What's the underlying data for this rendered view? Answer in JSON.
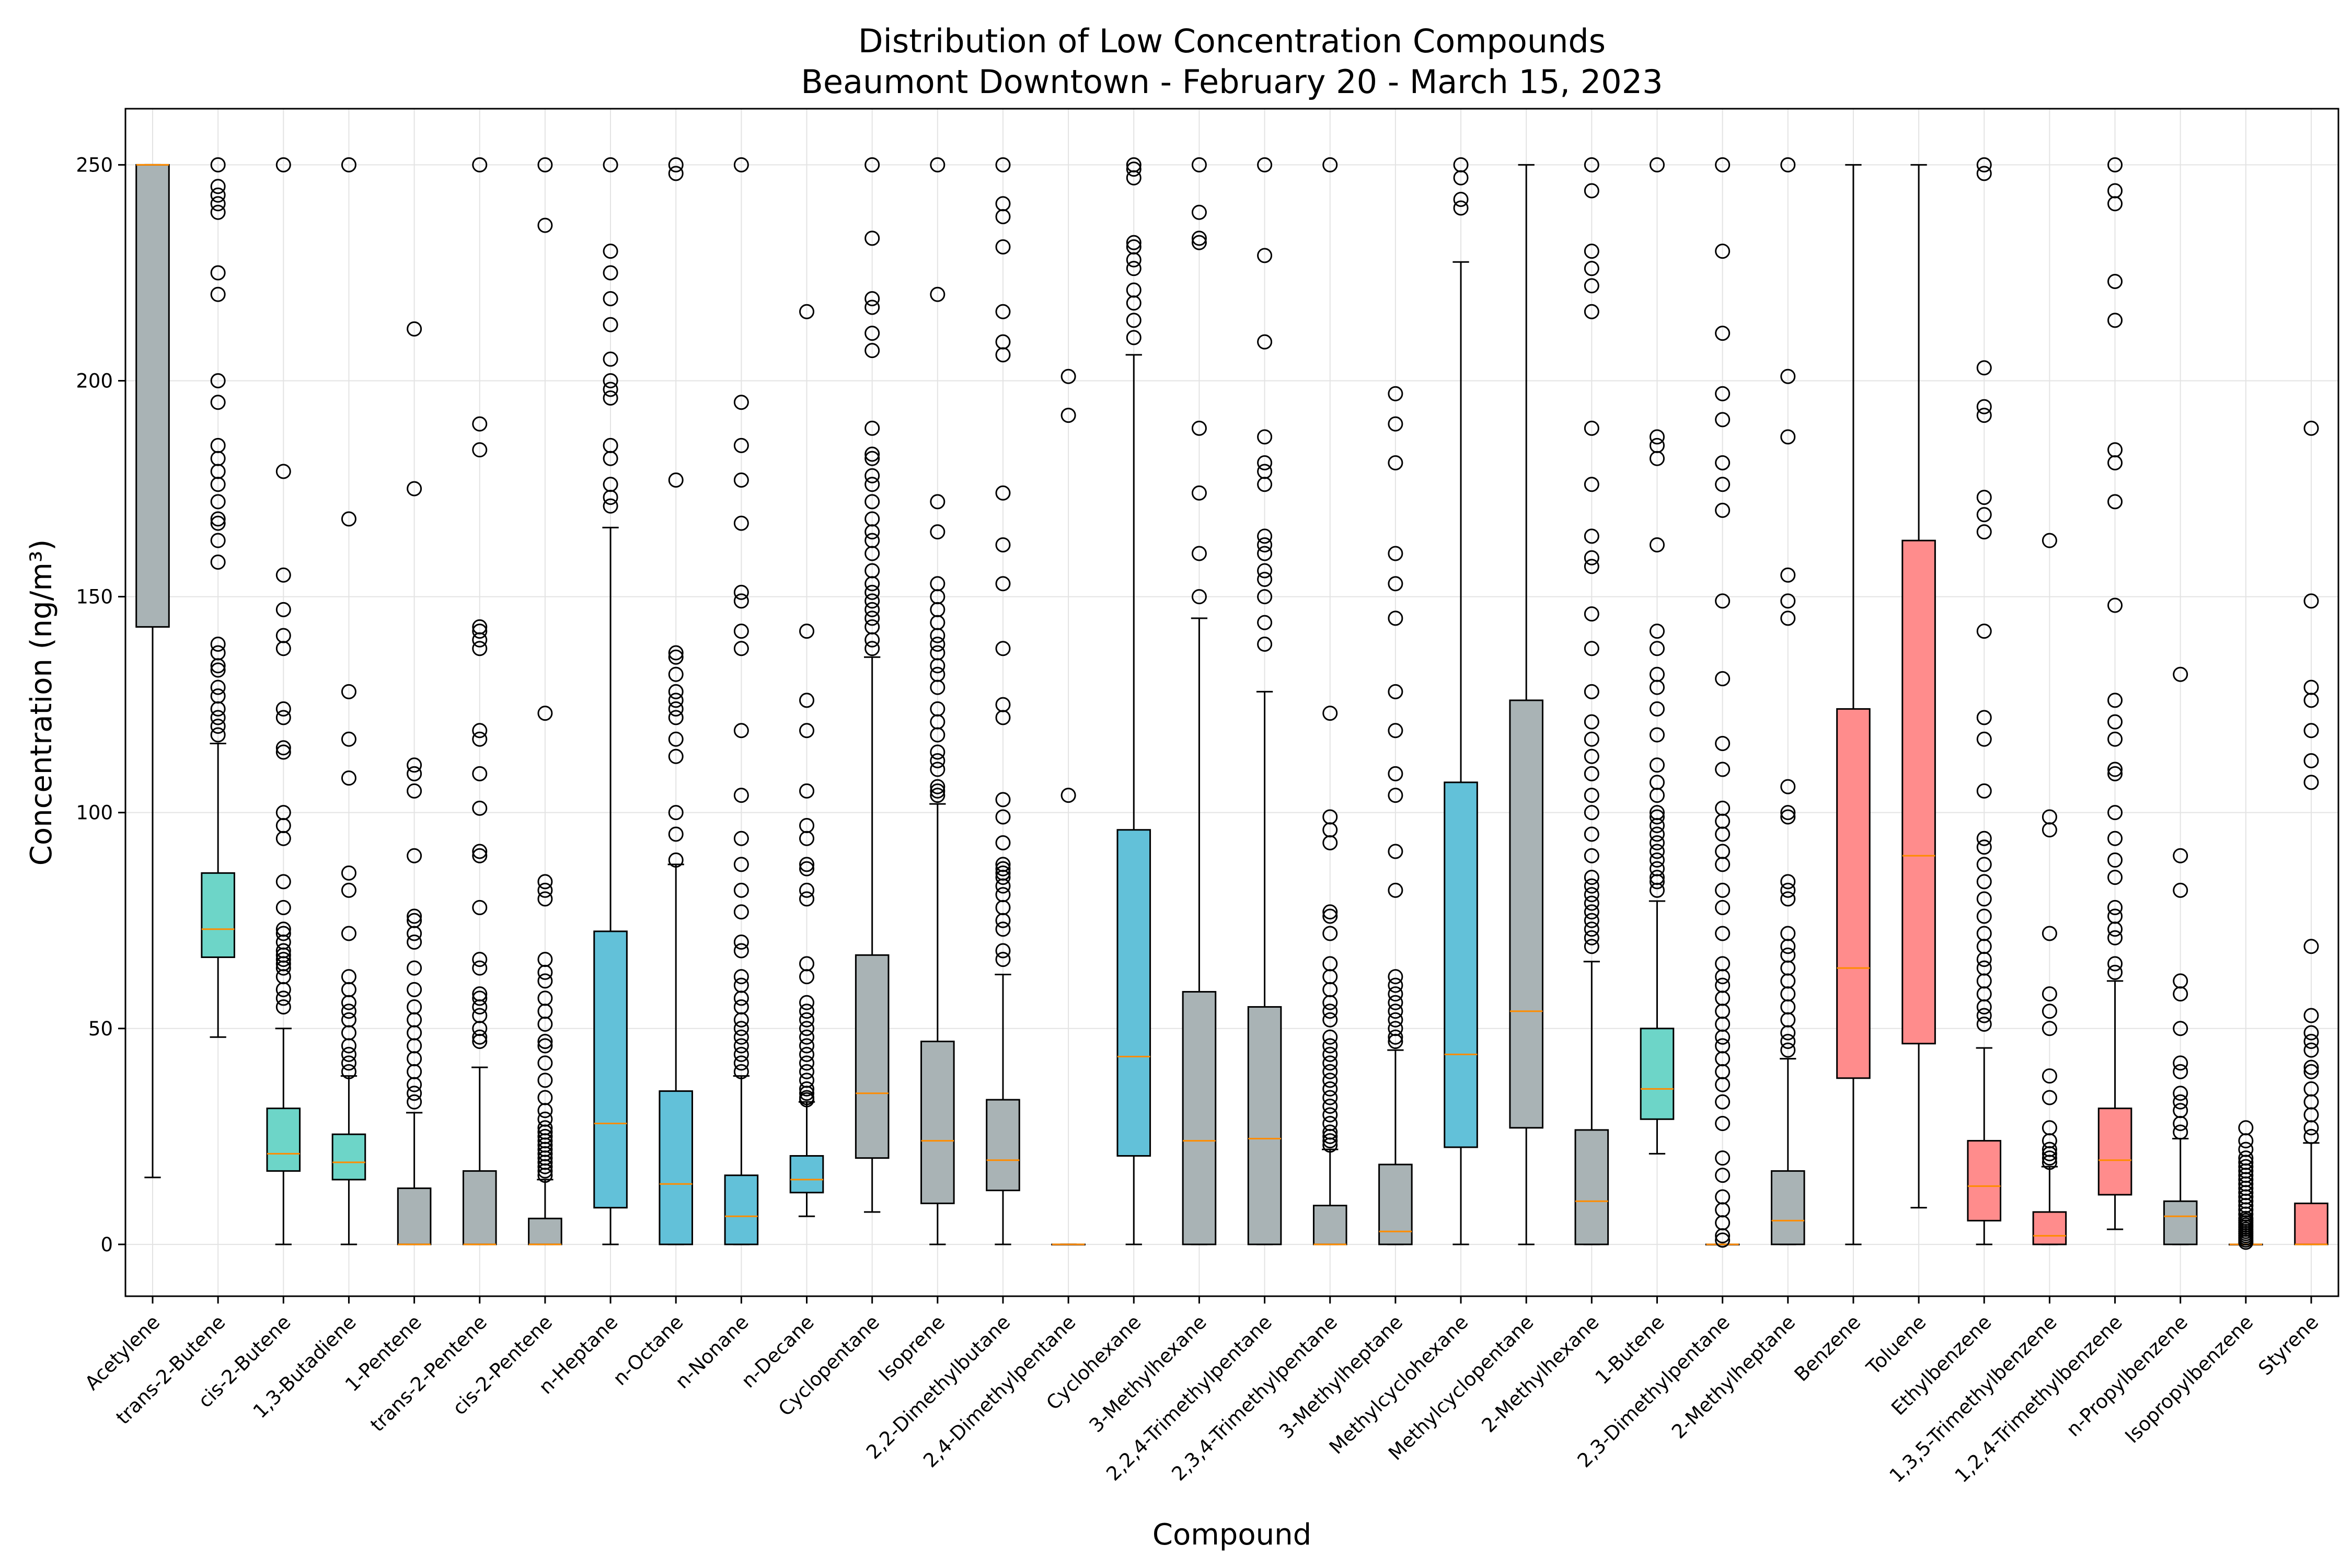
{
  "chart_data": {
    "type": "box",
    "title": "Distribution of Low Concentration Compounds",
    "subtitle": "Beaumont Downtown - February 20 - March 15, 2023",
    "xlabel": "Compound",
    "ylabel": "Concentration (ng/m³)",
    "ylim": [
      -12,
      263
    ],
    "yticks": [
      0,
      50,
      100,
      150,
      200,
      250
    ],
    "grid": true,
    "colors": {
      "grey": "#a9b3b5",
      "teal": "#6dd5c8",
      "blue": "#62c1d9",
      "red": "#ff8c8c",
      "median": "#ff8c00",
      "outline": "#000000",
      "grid": "#e3e3e3"
    },
    "series": [
      {
        "name": "Acetylene",
        "color": "grey",
        "q1": 143,
        "median": 250,
        "q3": 250,
        "wlo": 15.5,
        "whi": 250,
        "outliers": []
      },
      {
        "name": "trans-2-Butene",
        "color": "teal",
        "q1": 66.5,
        "median": 73,
        "q3": 86,
        "wlo": 48,
        "whi": 116,
        "outliers": [
          118,
          120,
          122,
          124,
          127,
          129,
          133,
          134,
          137,
          139,
          158,
          163,
          167,
          168,
          172,
          176,
          179,
          182,
          185,
          195,
          200,
          220,
          225,
          239,
          241,
          243,
          245,
          250
        ]
      },
      {
        "name": "cis-2-Butene",
        "color": "teal",
        "q1": 17,
        "median": 21,
        "q3": 31.5,
        "wlo": 0,
        "whi": 50,
        "outliers": [
          55,
          57,
          59,
          62,
          64,
          65,
          66,
          67,
          68,
          70,
          72,
          73,
          78,
          84,
          94,
          97,
          100,
          114,
          115,
          122,
          124,
          138,
          141,
          147,
          155,
          179,
          250
        ]
      },
      {
        "name": "1,3-Butadiene",
        "color": "teal",
        "q1": 15,
        "median": 19,
        "q3": 25.5,
        "wlo": 0,
        "whi": 39,
        "outliers": [
          40,
          42,
          44,
          46,
          49,
          52,
          54,
          56,
          59,
          62,
          72,
          82,
          86,
          108,
          117,
          128,
          168,
          250
        ]
      },
      {
        "name": "1-Pentene",
        "color": "grey",
        "q1": 0,
        "median": 0,
        "q3": 13,
        "wlo": 0,
        "whi": 30.5,
        "outliers": [
          33,
          35,
          37,
          40,
          43,
          46,
          49,
          52,
          55,
          59,
          64,
          70,
          72,
          75,
          76,
          90,
          105,
          109,
          111,
          175,
          212
        ]
      },
      {
        "name": "trans-2-Pentene",
        "color": "grey",
        "q1": 0,
        "median": 0,
        "q3": 17,
        "wlo": 0,
        "whi": 41,
        "outliers": [
          47,
          48,
          50,
          53,
          55,
          57,
          58,
          64,
          66,
          78,
          90,
          91,
          101,
          109,
          117,
          119,
          138,
          140,
          142,
          143,
          184,
          190,
          250
        ]
      },
      {
        "name": "cis-2-Pentene",
        "color": "grey",
        "q1": 0,
        "median": 0,
        "q3": 6,
        "wlo": 0,
        "whi": 15,
        "outliers": [
          16,
          17,
          18,
          19,
          20,
          21,
          22,
          23,
          24,
          25,
          26,
          27,
          29,
          31,
          34,
          38,
          42,
          46,
          47,
          51,
          54,
          57,
          61,
          63,
          66,
          80,
          82,
          84,
          123,
          236,
          250
        ]
      },
      {
        "name": "n-Heptane",
        "color": "blue",
        "q1": 8.5,
        "median": 28,
        "q3": 72.5,
        "wlo": 0,
        "whi": 166,
        "outliers": [
          171,
          173,
          176,
          182,
          185,
          196,
          198,
          200,
          205,
          213,
          219,
          225,
          230,
          250
        ]
      },
      {
        "name": "n-Octane",
        "color": "blue",
        "q1": 0,
        "median": 14,
        "q3": 35.5,
        "wlo": 0,
        "whi": 88,
        "outliers": [
          89,
          95,
          100,
          113,
          117,
          122,
          124,
          126,
          128,
          132,
          136,
          137,
          177,
          248,
          250
        ]
      },
      {
        "name": "n-Nonane",
        "color": "blue",
        "q1": 0,
        "median": 6.5,
        "q3": 16,
        "wlo": 0,
        "whi": 39,
        "outliers": [
          40,
          42,
          44,
          46,
          48,
          50,
          52,
          55,
          57,
          60,
          62,
          68,
          70,
          77,
          82,
          88,
          94,
          104,
          119,
          138,
          142,
          149,
          151,
          167,
          177,
          185,
          195,
          250
        ]
      },
      {
        "name": "n-Decane",
        "color": "blue",
        "q1": 12,
        "median": 15,
        "q3": 20.5,
        "wlo": 6.5,
        "whi": 33,
        "outliers": [
          33.5,
          34,
          35,
          36,
          38,
          40,
          42,
          44,
          46,
          48,
          50,
          52,
          54,
          56,
          62,
          65,
          80,
          82,
          87,
          88,
          94,
          97,
          105,
          119,
          126,
          142,
          216
        ]
      },
      {
        "name": "Cyclopentane",
        "color": "grey",
        "q1": 20,
        "median": 35,
        "q3": 67,
        "wlo": 7.5,
        "whi": 136,
        "outliers": [
          138,
          140,
          143,
          145,
          147,
          149,
          151,
          153,
          156,
          160,
          163,
          165,
          168,
          172,
          176,
          178,
          182,
          183,
          189,
          207,
          211,
          217,
          219,
          233,
          250
        ]
      },
      {
        "name": "Isoprene",
        "color": "grey",
        "q1": 9.5,
        "median": 24,
        "q3": 47,
        "wlo": 0,
        "whi": 102,
        "outliers": [
          104,
          105,
          106,
          110,
          112,
          114,
          118,
          121,
          124,
          129,
          132,
          134,
          137,
          139,
          141,
          144,
          147,
          150,
          153,
          165,
          172,
          220,
          250
        ]
      },
      {
        "name": "2,2-Dimethylbutane",
        "color": "grey",
        "q1": 12.5,
        "median": 19.5,
        "q3": 33.5,
        "wlo": 0,
        "whi": 62.5,
        "outliers": [
          66,
          68,
          73,
          75,
          78,
          81,
          83,
          85,
          86,
          87,
          88,
          93,
          99,
          103,
          122,
          125,
          138,
          153,
          162,
          174,
          206,
          209,
          216,
          231,
          238,
          241,
          250
        ]
      },
      {
        "name": "2,4-Dimethylpentane",
        "color": "grey",
        "q1": 0,
        "median": 0,
        "q3": 0,
        "wlo": 0,
        "whi": 0,
        "outliers": [
          104,
          192,
          201
        ]
      },
      {
        "name": "Cyclohexane",
        "color": "blue",
        "q1": 20.5,
        "median": 43.5,
        "q3": 96,
        "wlo": 0,
        "whi": 206,
        "outliers": [
          210,
          214,
          218,
          221,
          226,
          228,
          231,
          232,
          247,
          249,
          250
        ]
      },
      {
        "name": "3-Methylhexane",
        "color": "grey",
        "q1": 0,
        "median": 24,
        "q3": 58.5,
        "wlo": 0,
        "whi": 145,
        "outliers": [
          150,
          160,
          174,
          189,
          232,
          233,
          239,
          250
        ]
      },
      {
        "name": "2,2,4-Trimethylpentane",
        "color": "grey",
        "q1": 0,
        "median": 24.5,
        "q3": 55,
        "wlo": 0,
        "whi": 128,
        "outliers": [
          139,
          144,
          150,
          154,
          156,
          160,
          162,
          164,
          176,
          179,
          181,
          187,
          209,
          229,
          250
        ]
      },
      {
        "name": "2,3,4-Trimethylpentane",
        "color": "grey",
        "q1": 0,
        "median": 0,
        "q3": 9,
        "wlo": 0,
        "whi": 22,
        "outliers": [
          23,
          24,
          25,
          26,
          28,
          30,
          32,
          34,
          36,
          38,
          40,
          42,
          44,
          46,
          48,
          52,
          54,
          56,
          59,
          62,
          65,
          72,
          76,
          77,
          93,
          96,
          99,
          123,
          250
        ]
      },
      {
        "name": "3-Methylheptane",
        "color": "grey",
        "q1": 0,
        "median": 3,
        "q3": 18.5,
        "wlo": 0,
        "whi": 45,
        "outliers": [
          47,
          48,
          50,
          52,
          54,
          56,
          58,
          60,
          62,
          82,
          91,
          104,
          109,
          119,
          128,
          145,
          153,
          160,
          181,
          190,
          197
        ]
      },
      {
        "name": "Methylcyclohexane",
        "color": "blue",
        "q1": 22.5,
        "median": 44,
        "q3": 107,
        "wlo": 0,
        "whi": 227.5,
        "outliers": [
          240,
          242,
          247,
          250
        ]
      },
      {
        "name": "Methylcyclopentane",
        "color": "grey",
        "q1": 27,
        "median": 54,
        "q3": 126,
        "wlo": 0,
        "whi": 250,
        "outliers": []
      },
      {
        "name": "2-Methylhexane",
        "color": "grey",
        "q1": 0,
        "median": 10,
        "q3": 26.5,
        "wlo": 0,
        "whi": 65.5,
        "outliers": [
          69,
          71,
          73,
          75,
          77,
          79,
          81,
          83,
          85,
          90,
          95,
          100,
          104,
          109,
          113,
          117,
          121,
          128,
          138,
          146,
          157,
          159,
          164,
          176,
          189,
          216,
          222,
          226,
          230,
          244,
          250
        ]
      },
      {
        "name": "1-Butene",
        "color": "teal",
        "q1": 29,
        "median": 36,
        "q3": 50,
        "wlo": 21,
        "whi": 79.5,
        "outliers": [
          82,
          84,
          85,
          87,
          89,
          91,
          93,
          95,
          97,
          99,
          100,
          104,
          107,
          111,
          118,
          124,
          129,
          132,
          138,
          142,
          162,
          182,
          185,
          187,
          250
        ]
      },
      {
        "name": "2,3-Dimethylpentane",
        "color": "grey",
        "q1": 0,
        "median": 0,
        "q3": 0,
        "wlo": 0,
        "whi": 0,
        "outliers": [
          1,
          2,
          5,
          8,
          11,
          16,
          20,
          28,
          33,
          37,
          40,
          43,
          46,
          48,
          51,
          54,
          57,
          60,
          62,
          65,
          72,
          78,
          82,
          88,
          91,
          95,
          98,
          101,
          110,
          116,
          131,
          149,
          170,
          176,
          181,
          191,
          197,
          211,
          230,
          250
        ]
      },
      {
        "name": "2-Methylheptane",
        "color": "grey",
        "q1": 0,
        "median": 5.5,
        "q3": 17,
        "wlo": 0,
        "whi": 43,
        "outliers": [
          45,
          47,
          49,
          52,
          55,
          58,
          61,
          64,
          67,
          69,
          72,
          80,
          82,
          84,
          99,
          100,
          106,
          145,
          149,
          155,
          187,
          201,
          250
        ]
      },
      {
        "name": "Benzene",
        "color": "red",
        "q1": 38.5,
        "median": 64,
        "q3": 124,
        "wlo": 0,
        "whi": 250,
        "outliers": []
      },
      {
        "name": "Toluene",
        "color": "red",
        "q1": 46.5,
        "median": 90,
        "q3": 163,
        "wlo": 8.5,
        "whi": 250,
        "outliers": []
      },
      {
        "name": "Ethylbenzene",
        "color": "red",
        "q1": 5.5,
        "median": 13.5,
        "q3": 24,
        "wlo": 0,
        "whi": 45.5,
        "outliers": [
          51,
          53,
          55,
          58,
          61,
          64,
          66,
          69,
          72,
          76,
          80,
          84,
          88,
          92,
          94,
          105,
          117,
          122,
          142,
          165,
          169,
          173,
          192,
          194,
          203,
          248,
          250
        ]
      },
      {
        "name": "1,3,5-Trimethylbenzene",
        "color": "red",
        "q1": 0,
        "median": 2,
        "q3": 7.5,
        "wlo": 0,
        "whi": 18,
        "outliers": [
          19,
          20,
          21,
          22,
          24,
          27,
          34,
          39,
          50,
          54,
          58,
          72,
          96,
          99,
          163
        ]
      },
      {
        "name": "1,2,4-Trimethylbenzene",
        "color": "red",
        "q1": 11.5,
        "median": 19.5,
        "q3": 31.5,
        "wlo": 3.5,
        "whi": 61,
        "outliers": [
          63,
          65,
          71,
          73,
          76,
          78,
          85,
          89,
          94,
          100,
          109,
          110,
          117,
          121,
          126,
          148,
          172,
          181,
          184,
          214,
          223,
          241,
          244,
          250
        ]
      },
      {
        "name": "n-Propylbenzene",
        "color": "grey",
        "q1": 0,
        "median": 6.5,
        "q3": 10,
        "wlo": 0,
        "whi": 24.5,
        "outliers": [
          26,
          28,
          31,
          33,
          35,
          40,
          42,
          50,
          58,
          61,
          82,
          90,
          132
        ]
      },
      {
        "name": "Isopropylbenzene",
        "color": "grey",
        "q1": 0,
        "median": 0,
        "q3": 0,
        "wlo": 0,
        "whi": 0,
        "outliers": [
          0.5,
          1,
          1.5,
          2,
          2.5,
          3,
          3.5,
          4,
          4.5,
          5,
          5.5,
          6,
          7,
          8,
          9,
          10,
          11,
          12,
          13,
          14,
          15,
          16,
          17,
          18,
          19,
          20,
          22,
          24,
          27
        ]
      },
      {
        "name": "Styrene",
        "color": "red",
        "q1": 0,
        "median": 0,
        "q3": 9.5,
        "wlo": 0,
        "whi": 23.5,
        "outliers": [
          25,
          27,
          30,
          33,
          36,
          40,
          41,
          45,
          47,
          49,
          53,
          69,
          107,
          112,
          119,
          126,
          129,
          149,
          189
        ]
      }
    ]
  }
}
